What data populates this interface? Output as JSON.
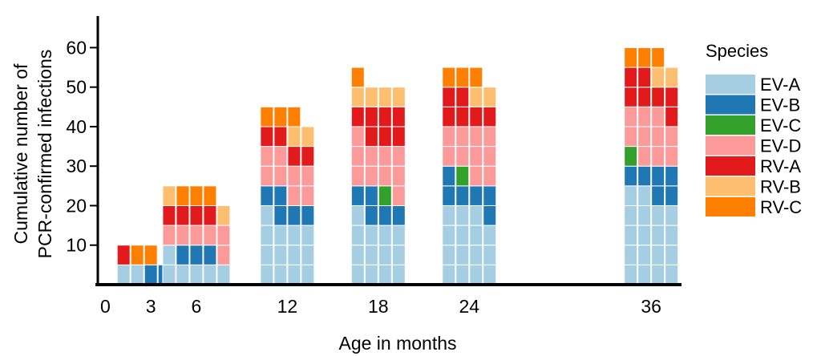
{
  "chart_data": {
    "type": "bar",
    "xlabel": "Age in months",
    "ylabel_lines": [
      "Cumulative number of",
      "PCR-confirmed infections"
    ],
    "ylim": [
      0,
      68
    ],
    "y_ticks": [
      10,
      20,
      30,
      40,
      50,
      60
    ],
    "x_ticks": [
      0,
      3,
      6,
      12,
      18,
      24,
      36
    ],
    "xlim": [
      -0.5,
      38
    ],
    "unit": 5,
    "legend_title": "Species",
    "legend_position": "right",
    "species": [
      {
        "name": "EV-A",
        "color": "#a6cee3"
      },
      {
        "name": "EV-B",
        "color": "#1f78b4"
      },
      {
        "name": "EV-C",
        "color": "#33a02c"
      },
      {
        "name": "EV-D",
        "color": "#fb9a99"
      },
      {
        "name": "RV-A",
        "color": "#e31a1c"
      },
      {
        "name": "RV-B",
        "color": "#fdbf6f"
      },
      {
        "name": "RV-C",
        "color": "#ff7f00"
      }
    ],
    "groups": [
      {
        "age": 3,
        "subjects": [
          [
            {
              "s": "EV-A",
              "n": 1
            },
            {
              "s": "RV-A",
              "n": 1
            }
          ],
          [
            {
              "s": "EV-A",
              "n": 1
            },
            {
              "s": "RV-C",
              "n": 1
            }
          ],
          [
            {
              "s": "EV-B",
              "n": 1
            },
            {
              "s": "RV-C",
              "n": 1
            }
          ],
          [
            {
              "s": "EV-B",
              "n": 1
            }
          ],
          [
            {
              "s": "RV-A",
              "n": 1
            }
          ]
        ]
      },
      {
        "age": 6,
        "subjects": [
          [
            {
              "s": "EV-A",
              "n": 2
            },
            {
              "s": "EV-D",
              "n": 1
            },
            {
              "s": "RV-A",
              "n": 1
            },
            {
              "s": "RV-B",
              "n": 1
            }
          ],
          [
            {
              "s": "EV-A",
              "n": 1
            },
            {
              "s": "EV-B",
              "n": 1
            },
            {
              "s": "EV-D",
              "n": 1
            },
            {
              "s": "RV-A",
              "n": 1
            },
            {
              "s": "RV-C",
              "n": 1
            }
          ],
          [
            {
              "s": "EV-A",
              "n": 1
            },
            {
              "s": "EV-B",
              "n": 1
            },
            {
              "s": "EV-D",
              "n": 1
            },
            {
              "s": "RV-A",
              "n": 1
            },
            {
              "s": "RV-C",
              "n": 1
            }
          ],
          [
            {
              "s": "EV-A",
              "n": 1
            },
            {
              "s": "EV-B",
              "n": 1
            },
            {
              "s": "EV-D",
              "n": 1
            },
            {
              "s": "RV-A",
              "n": 1
            },
            {
              "s": "RV-C",
              "n": 1
            }
          ],
          [
            {
              "s": "EV-A",
              "n": 1
            },
            {
              "s": "EV-D",
              "n": 2
            },
            {
              "s": "RV-B",
              "n": 1
            }
          ]
        ]
      },
      {
        "age": 12,
        "subjects": [
          [
            {
              "s": "EV-A",
              "n": 4
            },
            {
              "s": "EV-B",
              "n": 1
            },
            {
              "s": "EV-D",
              "n": 2
            },
            {
              "s": "RV-A",
              "n": 1
            },
            {
              "s": "RV-C",
              "n": 1
            }
          ],
          [
            {
              "s": "EV-A",
              "n": 3
            },
            {
              "s": "EV-B",
              "n": 2
            },
            {
              "s": "EV-D",
              "n": 2
            },
            {
              "s": "RV-A",
              "n": 1
            },
            {
              "s": "RV-C",
              "n": 1
            }
          ],
          [
            {
              "s": "EV-A",
              "n": 3
            },
            {
              "s": "EV-B",
              "n": 1
            },
            {
              "s": "EV-D",
              "n": 2
            },
            {
              "s": "RV-A",
              "n": 1
            },
            {
              "s": "RV-B",
              "n": 1
            },
            {
              "s": "RV-C",
              "n": 1
            }
          ],
          [
            {
              "s": "EV-A",
              "n": 3
            },
            {
              "s": "EV-B",
              "n": 1
            },
            {
              "s": "EV-D",
              "n": 2
            },
            {
              "s": "RV-A",
              "n": 1
            },
            {
              "s": "RV-B",
              "n": 1
            }
          ]
        ]
      },
      {
        "age": 18,
        "subjects": [
          [
            {
              "s": "EV-A",
              "n": 4
            },
            {
              "s": "EV-B",
              "n": 1
            },
            {
              "s": "EV-D",
              "n": 3
            },
            {
              "s": "RV-A",
              "n": 1
            },
            {
              "s": "RV-B",
              "n": 1
            },
            {
              "s": "RV-C",
              "n": 1
            }
          ],
          [
            {
              "s": "EV-A",
              "n": 3
            },
            {
              "s": "EV-B",
              "n": 2
            },
            {
              "s": "EV-D",
              "n": 2
            },
            {
              "s": "RV-A",
              "n": 2
            },
            {
              "s": "RV-B",
              "n": 1
            }
          ],
          [
            {
              "s": "EV-A",
              "n": 3
            },
            {
              "s": "EV-B",
              "n": 1
            },
            {
              "s": "EV-C",
              "n": 1
            },
            {
              "s": "EV-D",
              "n": 2
            },
            {
              "s": "RV-A",
              "n": 2
            },
            {
              "s": "RV-B",
              "n": 1
            }
          ],
          [
            {
              "s": "EV-A",
              "n": 3
            },
            {
              "s": "EV-B",
              "n": 1
            },
            {
              "s": "EV-D",
              "n": 3
            },
            {
              "s": "RV-A",
              "n": 2
            },
            {
              "s": "RV-B",
              "n": 1
            }
          ]
        ]
      },
      {
        "age": 24,
        "subjects": [
          [
            {
              "s": "EV-A",
              "n": 4
            },
            {
              "s": "EV-B",
              "n": 2
            },
            {
              "s": "EV-D",
              "n": 2
            },
            {
              "s": "RV-A",
              "n": 2
            },
            {
              "s": "RV-C",
              "n": 1
            }
          ],
          [
            {
              "s": "EV-A",
              "n": 4
            },
            {
              "s": "EV-B",
              "n": 1
            },
            {
              "s": "EV-C",
              "n": 1
            },
            {
              "s": "EV-D",
              "n": 2
            },
            {
              "s": "RV-A",
              "n": 2
            },
            {
              "s": "RV-C",
              "n": 1
            }
          ],
          [
            {
              "s": "EV-A",
              "n": 4
            },
            {
              "s": "EV-B",
              "n": 1
            },
            {
              "s": "EV-D",
              "n": 3
            },
            {
              "s": "RV-A",
              "n": 1
            },
            {
              "s": "RV-B",
              "n": 1
            },
            {
              "s": "RV-C",
              "n": 1
            }
          ],
          [
            {
              "s": "EV-A",
              "n": 3
            },
            {
              "s": "EV-B",
              "n": 2
            },
            {
              "s": "EV-D",
              "n": 3
            },
            {
              "s": "RV-A",
              "n": 1
            },
            {
              "s": "RV-B",
              "n": 1
            }
          ]
        ]
      },
      {
        "age": 36,
        "subjects": [
          [
            {
              "s": "EV-A",
              "n": 5
            },
            {
              "s": "EV-B",
              "n": 1
            },
            {
              "s": "EV-C",
              "n": 1
            },
            {
              "s": "EV-D",
              "n": 2
            },
            {
              "s": "RV-A",
              "n": 2
            },
            {
              "s": "RV-C",
              "n": 1
            }
          ],
          [
            {
              "s": "EV-A",
              "n": 5
            },
            {
              "s": "EV-B",
              "n": 1
            },
            {
              "s": "EV-D",
              "n": 3
            },
            {
              "s": "RV-A",
              "n": 2
            },
            {
              "s": "RV-C",
              "n": 1
            }
          ],
          [
            {
              "s": "EV-A",
              "n": 4
            },
            {
              "s": "EV-B",
              "n": 2
            },
            {
              "s": "EV-D",
              "n": 3
            },
            {
              "s": "RV-A",
              "n": 1
            },
            {
              "s": "RV-B",
              "n": 1
            },
            {
              "s": "RV-C",
              "n": 1
            }
          ],
          [
            {
              "s": "EV-A",
              "n": 4
            },
            {
              "s": "EV-B",
              "n": 2
            },
            {
              "s": "EV-D",
              "n": 2
            },
            {
              "s": "RV-A",
              "n": 2
            },
            {
              "s": "RV-B",
              "n": 1
            }
          ]
        ]
      }
    ]
  }
}
